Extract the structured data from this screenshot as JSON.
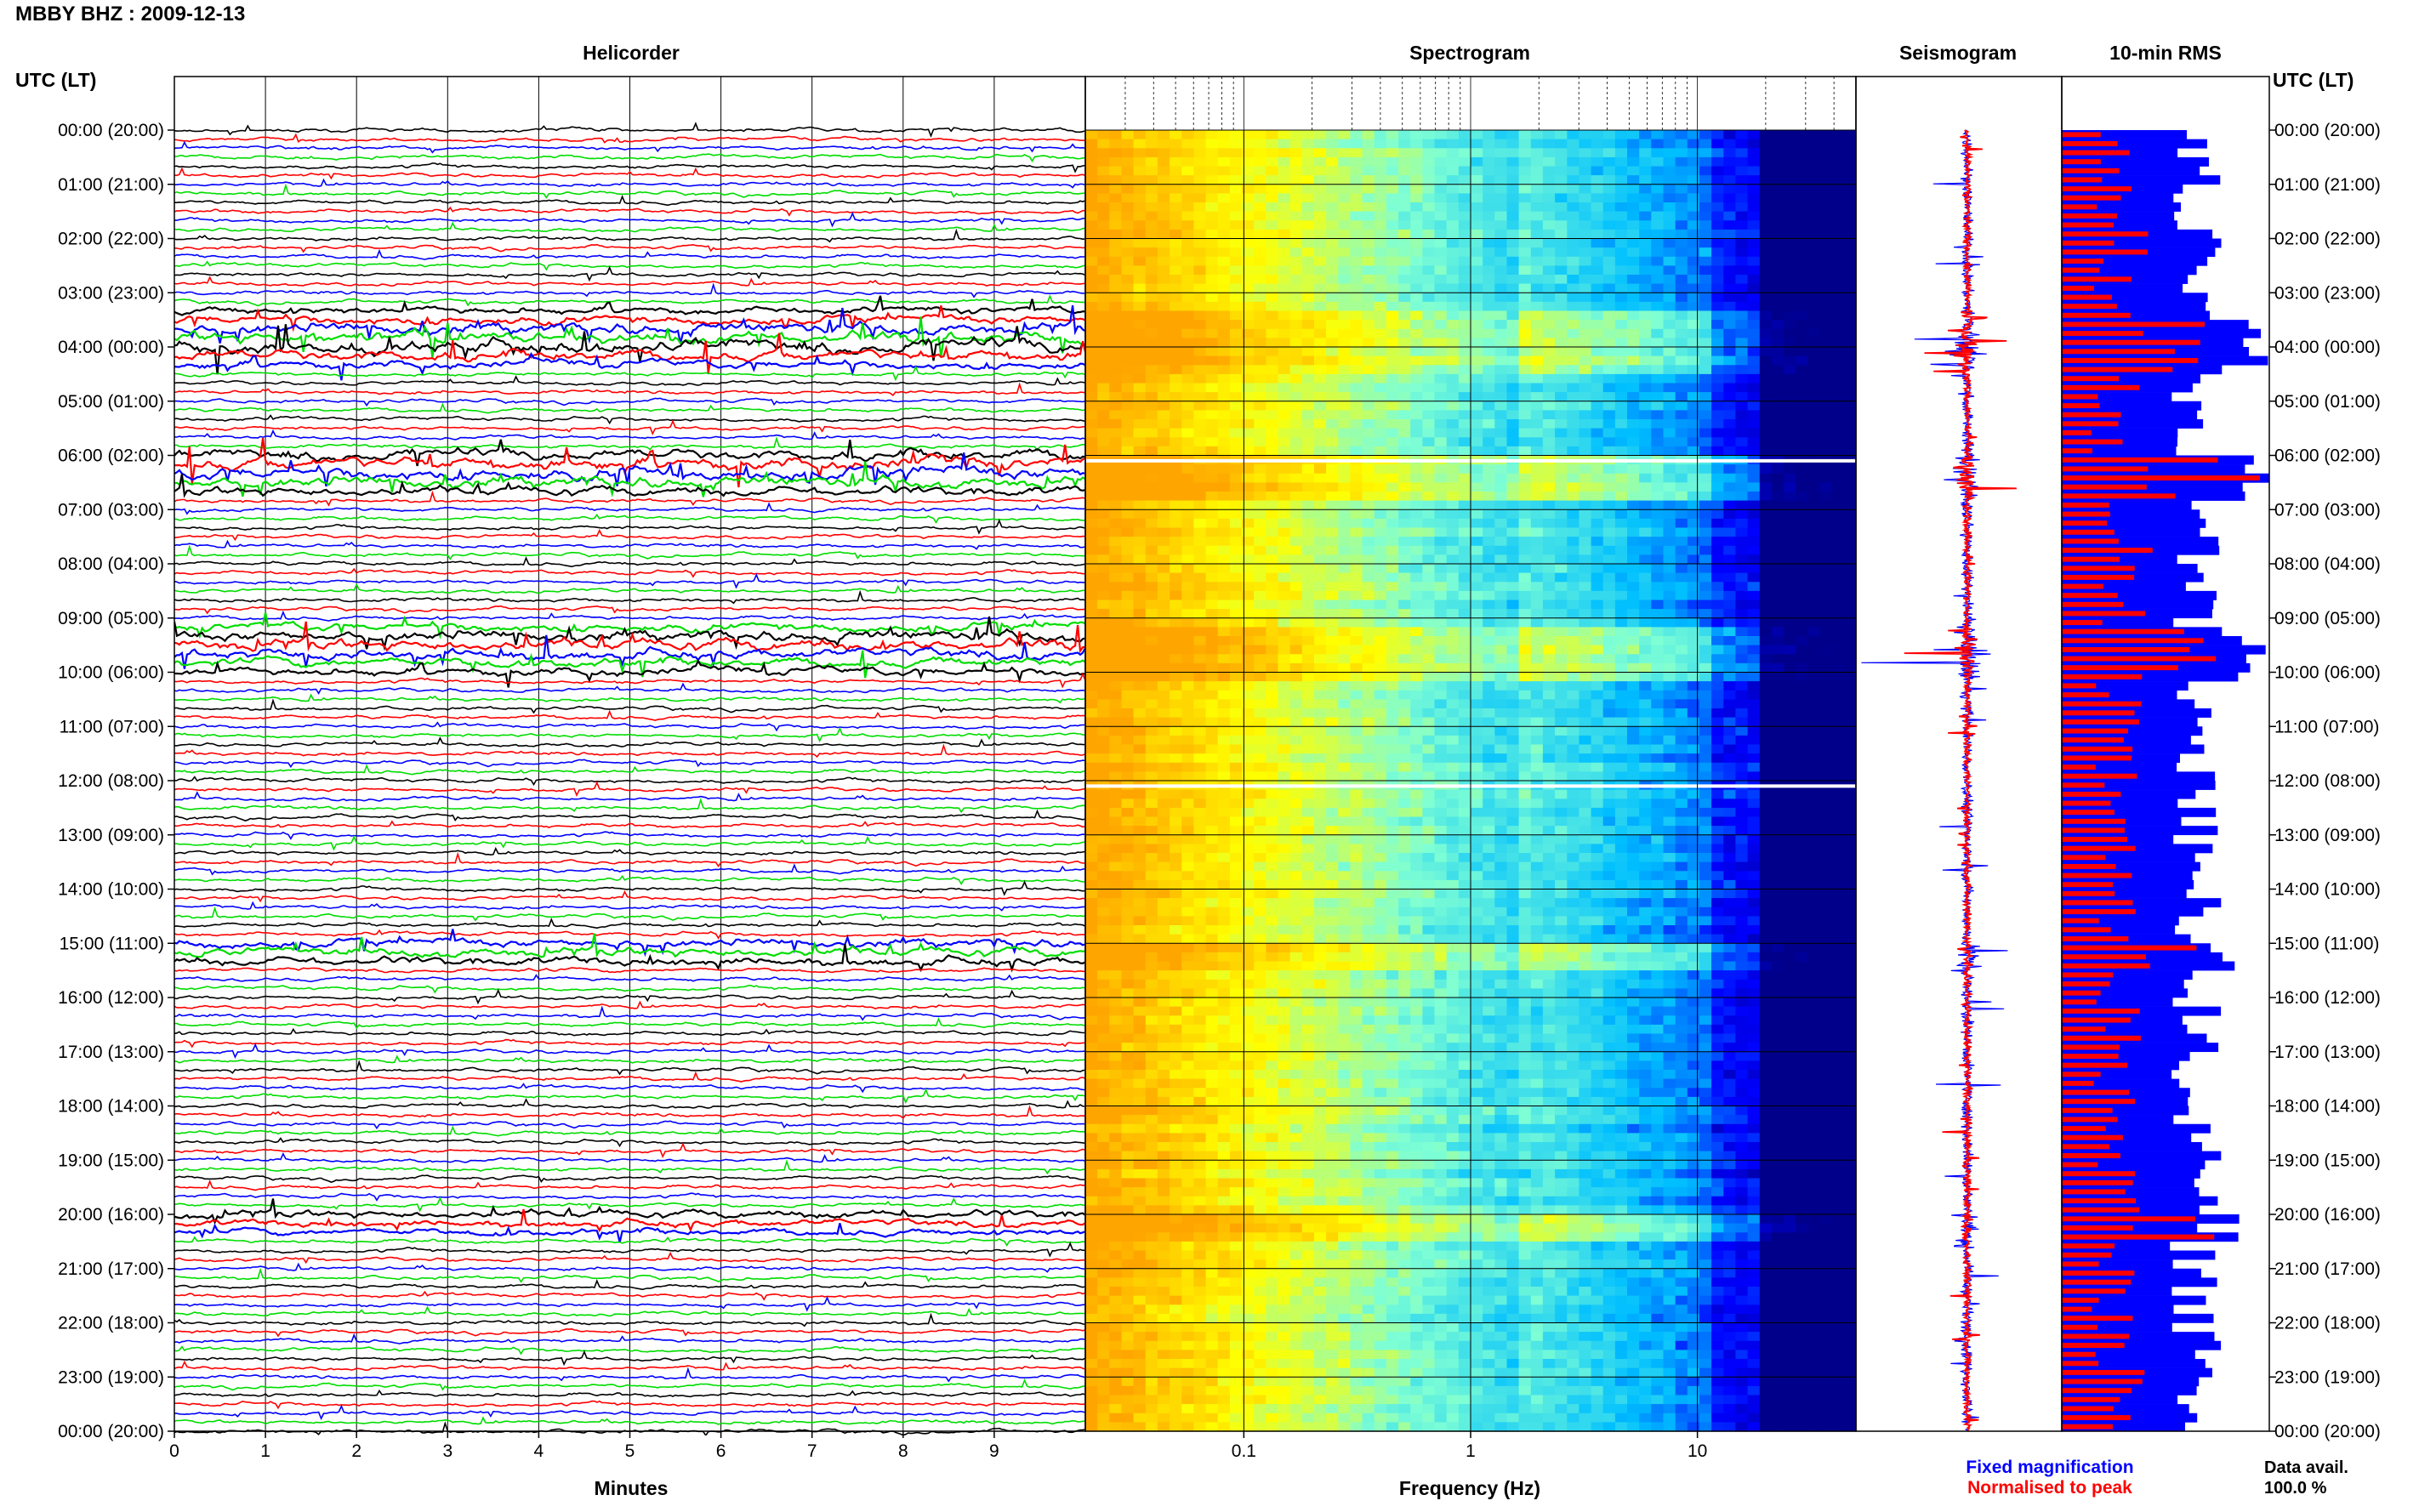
{
  "header": {
    "station_prefix": "MBBY BHZ : ",
    "date": "2009-12-13"
  },
  "panels": {
    "helicorder": "Helicorder",
    "spectrogram": "Spectrogram",
    "seismogram": "Seismogram",
    "rms": "10-min RMS"
  },
  "axes": {
    "utc_label_left": "UTC (LT)",
    "utc_label_right": "UTC (LT)",
    "minutes_label": "Minutes",
    "frequency_label": "Frequency (Hz)"
  },
  "footer": {
    "fixed_magnification": "Fixed magnification",
    "normalised_to_peak": "Normalised to peak",
    "data_avail_label": "Data avail.",
    "data_avail_value": "100.0 %"
  },
  "colors": {
    "black_trace": "#000000",
    "red_trace": "#ff0000",
    "blue_trace": "#0000ff",
    "green_trace": "#00dd00",
    "fixed": "#0000ff",
    "normalised": "#ff0000"
  },
  "chart_data": [
    {
      "type": "line",
      "panel": "helicorder",
      "title": "Helicorder",
      "xlabel": "Minutes",
      "ylabel": "UTC (LT)",
      "x_ticks": [
        0,
        1,
        2,
        3,
        4,
        5,
        6,
        7,
        8,
        9
      ],
      "xlim": [
        0,
        10
      ],
      "trace_colors": [
        "black",
        "red",
        "blue",
        "green"
      ],
      "traces_per_hour": 6,
      "hour_labels": [
        "00:00 (20:00)",
        "01:00 (21:00)",
        "02:00 (22:00)",
        "03:00 (23:00)",
        "04:00 (00:00)",
        "05:00 (01:00)",
        "06:00 (02:00)",
        "07:00 (03:00)",
        "08:00 (04:00)",
        "09:00 (05:00)",
        "10:00 (06:00)",
        "11:00 (07:00)",
        "12:00 (08:00)",
        "13:00 (09:00)",
        "14:00 (10:00)",
        "15:00 (11:00)",
        "16:00 (12:00)",
        "17:00 (13:00)",
        "18:00 (14:00)",
        "19:00 (15:00)",
        "20:00 (16:00)",
        "21:00 (17:00)",
        "22:00 (18:00)",
        "23:00 (19:00)",
        "00:00 (20:00)"
      ],
      "grid": true
    },
    {
      "type": "heatmap",
      "panel": "spectrogram",
      "title": "Spectrogram",
      "xlabel": "Frequency (Hz)",
      "x_scale": "log",
      "xlim": [
        0.02,
        50
      ],
      "x_tick_labels": [
        "0.1",
        "1",
        "10"
      ],
      "x_ticks": [
        0.1,
        1,
        10
      ],
      "y_rows": 144,
      "colormap": [
        "#00008b",
        "#0000ff",
        "#00bfff",
        "#7fffd4",
        "#ffff00",
        "#ffa500"
      ],
      "white_gaps_hours": [
        6.1,
        12.1
      ]
    },
    {
      "type": "line",
      "panel": "seismogram",
      "title": "Seismogram",
      "series": [
        {
          "name": "Fixed magnification",
          "color": "#0000ff"
        },
        {
          "name": "Normalised to peak",
          "color": "#ff0000"
        }
      ]
    },
    {
      "type": "bar",
      "panel": "rms",
      "title": "10-min RMS",
      "orientation": "horizontal",
      "bars_per_hour": 6,
      "series": [
        {
          "name": "Fixed magnification",
          "color": "#0000ff"
        },
        {
          "name": "Normalised to peak",
          "color": "#ff0000"
        }
      ],
      "data_avail": "100.0 %"
    }
  ]
}
